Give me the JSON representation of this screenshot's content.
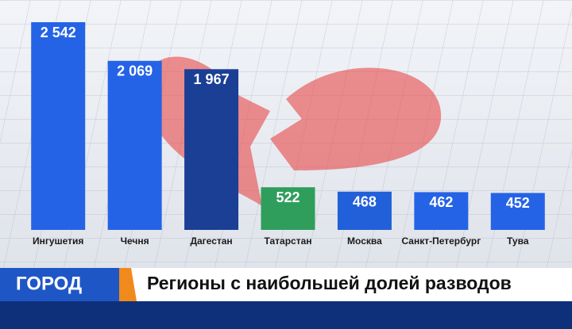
{
  "chart_data": {
    "type": "bar",
    "title": "Регионы с наибольшей долей разводов",
    "channel": "ГОРОД",
    "categories": [
      "Ингушетия",
      "Чечня",
      "Дагестан",
      "Татарстан",
      "Москва",
      "Санкт-Петербург",
      "Тува"
    ],
    "values": [
      2542,
      2069,
      1967,
      522,
      468,
      462,
      452
    ],
    "value_labels": [
      "2 542",
      "2 069",
      "1 967",
      "522",
      "468",
      "462",
      "452"
    ],
    "colors": [
      "#2563e6",
      "#2563e6",
      "#1b3f94",
      "#2f9e5c",
      "#2160d8",
      "#2563e6",
      "#2563e6"
    ]
  }
}
